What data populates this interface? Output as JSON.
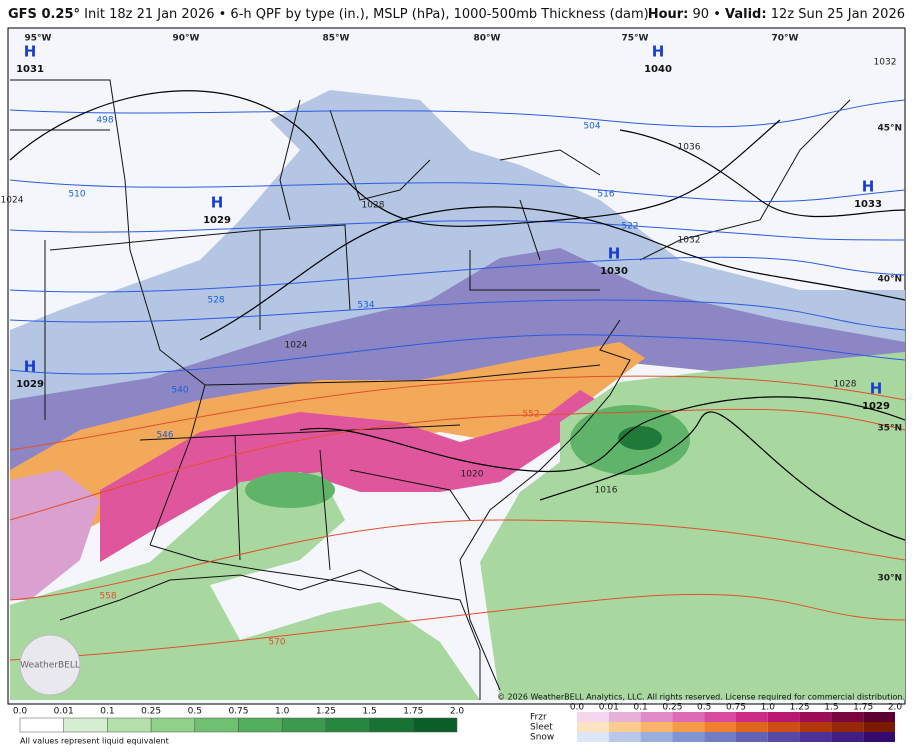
{
  "header": {
    "model": "GFS 0.25°",
    "title": "Init 18z 21 Jan 2026 • 6-h QPF by type (in.), MSLP (hPa), 1000-500mb Thickness (dam)",
    "hour_label": "Hour:",
    "hour": "90",
    "separator": "•",
    "valid_label": "Valid:",
    "valid": "12z Sun 25 Jan 2026"
  },
  "map": {
    "longitudes": [
      "95°W",
      "90°W",
      "85°W",
      "80°W",
      "75°W",
      "70°W"
    ],
    "latitudes": [
      "45°N",
      "40°N",
      "35°N",
      "30°N"
    ],
    "highs": [
      {
        "label": "H",
        "pressure": "1031"
      },
      {
        "label": "H",
        "pressure": "1029"
      },
      {
        "label": "H",
        "pressure": "1040"
      },
      {
        "label": "H",
        "pressure": "1033"
      },
      {
        "label": "H",
        "pressure": "1030"
      },
      {
        "label": "H",
        "pressure": "1029"
      },
      {
        "label": "H",
        "pressure": "1029"
      }
    ],
    "isobars": [
      "1028",
      "1024",
      "1032",
      "1036",
      "1020",
      "1016",
      "1028",
      "1024",
      "1032"
    ],
    "thickness": [
      "498",
      "504",
      "510",
      "516",
      "522",
      "528",
      "534",
      "540",
      "546",
      "552",
      "558",
      "570"
    ]
  },
  "copyright": "© 2026 WeatherBELL Analytics, LLC. All rights reserved. License required for commercial distribution.",
  "logo": "WeatherBELL",
  "legend": {
    "rain_ticks": [
      "0.0",
      "0.01",
      "0.1",
      "0.25",
      "0.5",
      "0.75",
      "1.0",
      "1.25",
      "1.5",
      "1.75",
      "2.0"
    ],
    "note": "All values represent liquid equivalent",
    "types": [
      "Frzr",
      "Sleet",
      "Snow"
    ],
    "type_ticks": [
      "0.0",
      "0.01",
      "0.1",
      "0.25",
      "0.5",
      "0.75",
      "1.0",
      "1.25",
      "1.5",
      "1.75",
      "2.0"
    ]
  }
}
